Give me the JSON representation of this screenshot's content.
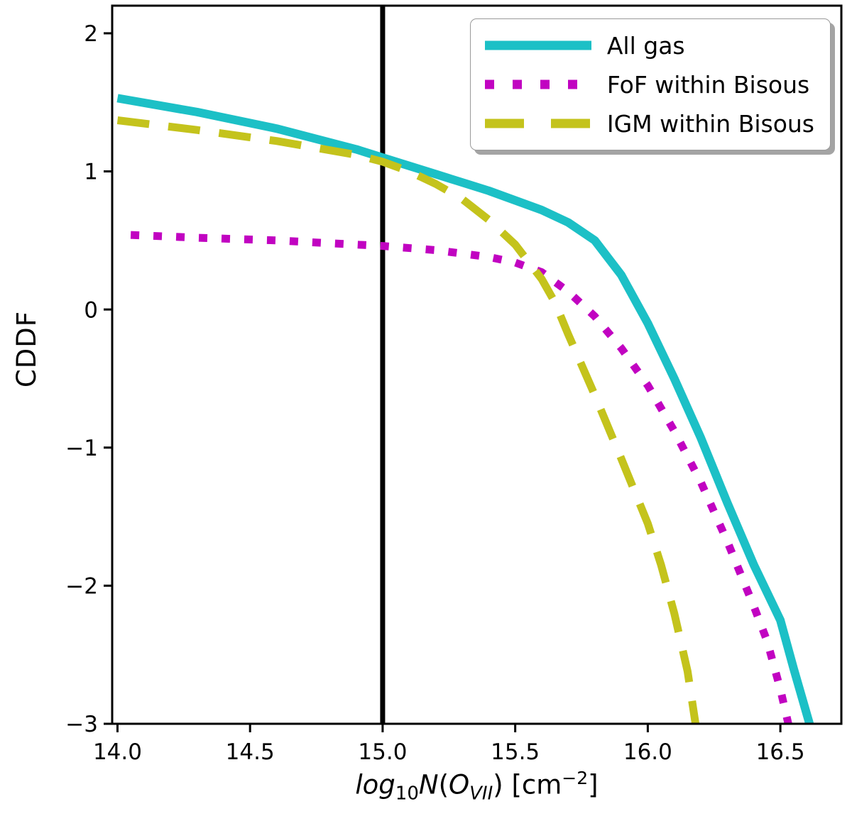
{
  "figure": {
    "background": "#ffffff",
    "axis_color": "#000000"
  },
  "chart_data": {
    "type": "line",
    "title": "",
    "ylabel": "CDDF",
    "xlabel_plain": "log10 N(O_VII) [cm^-2]",
    "xlabel_parts": {
      "log": "log",
      "sub10": "10",
      "N": "N",
      "open": "(",
      "O": "O",
      "ovii": "VII",
      "close": ")",
      "cm": " [cm",
      "exp": "−2",
      "bracket": "]"
    },
    "xlim": [
      13.98,
      16.73
    ],
    "ylim": [
      -3.0,
      2.2
    ],
    "xticks": [
      14.0,
      14.5,
      15.0,
      15.5,
      16.0,
      16.5
    ],
    "xtick_labels": [
      "14.0",
      "14.5",
      "15.0",
      "15.5",
      "16.0",
      "16.5"
    ],
    "yticks": [
      2,
      1,
      0,
      -1,
      -2,
      -3
    ],
    "ytick_labels": [
      "2",
      "1",
      "0",
      "−1",
      "−2",
      "−3"
    ],
    "grid": false,
    "legend_position": "upper right",
    "vline": {
      "x": 15.0,
      "color": "#000000",
      "width": 7
    },
    "series": [
      {
        "name": "All gas",
        "color": "#1cc0c6",
        "style": "solid",
        "width": 12,
        "x": [
          14.0,
          14.3,
          14.6,
          14.9,
          15.0,
          15.2,
          15.4,
          15.6,
          15.7,
          15.8,
          15.9,
          16.0,
          16.1,
          16.2,
          16.3,
          16.4,
          16.5,
          16.55,
          16.61
        ],
        "y": [
          1.53,
          1.43,
          1.31,
          1.16,
          1.1,
          0.98,
          0.86,
          0.72,
          0.63,
          0.5,
          0.25,
          -0.1,
          -0.5,
          -0.93,
          -1.4,
          -1.85,
          -2.25,
          -2.6,
          -3.0
        ]
      },
      {
        "name": "FoF within Bisous",
        "color": "#c103c1",
        "style": "dotted",
        "width": 11,
        "x": [
          14.05,
          14.3,
          14.6,
          14.9,
          15.0,
          15.2,
          15.4,
          15.5,
          15.6,
          15.7,
          15.8,
          15.9,
          16.0,
          16.1,
          16.2,
          16.3,
          16.4,
          16.45,
          16.5,
          16.53
        ],
        "y": [
          0.54,
          0.52,
          0.5,
          0.47,
          0.46,
          0.43,
          0.38,
          0.34,
          0.27,
          0.13,
          -0.05,
          -0.28,
          -0.55,
          -0.88,
          -1.25,
          -1.68,
          -2.15,
          -2.4,
          -2.75,
          -3.0
        ]
      },
      {
        "name": "IGM within Bisous",
        "color": "#c4c31c",
        "style": "dashed",
        "width": 11,
        "x": [
          14.0,
          14.3,
          14.6,
          14.9,
          15.0,
          15.1,
          15.2,
          15.3,
          15.4,
          15.5,
          15.6,
          15.65,
          15.7,
          15.8,
          15.9,
          16.0,
          16.05,
          16.1,
          16.15,
          16.18
        ],
        "y": [
          1.37,
          1.3,
          1.22,
          1.12,
          1.07,
          1.0,
          0.91,
          0.8,
          0.65,
          0.47,
          0.22,
          0.05,
          -0.18,
          -0.62,
          -1.08,
          -1.55,
          -1.85,
          -2.2,
          -2.62,
          -3.0
        ]
      }
    ]
  }
}
